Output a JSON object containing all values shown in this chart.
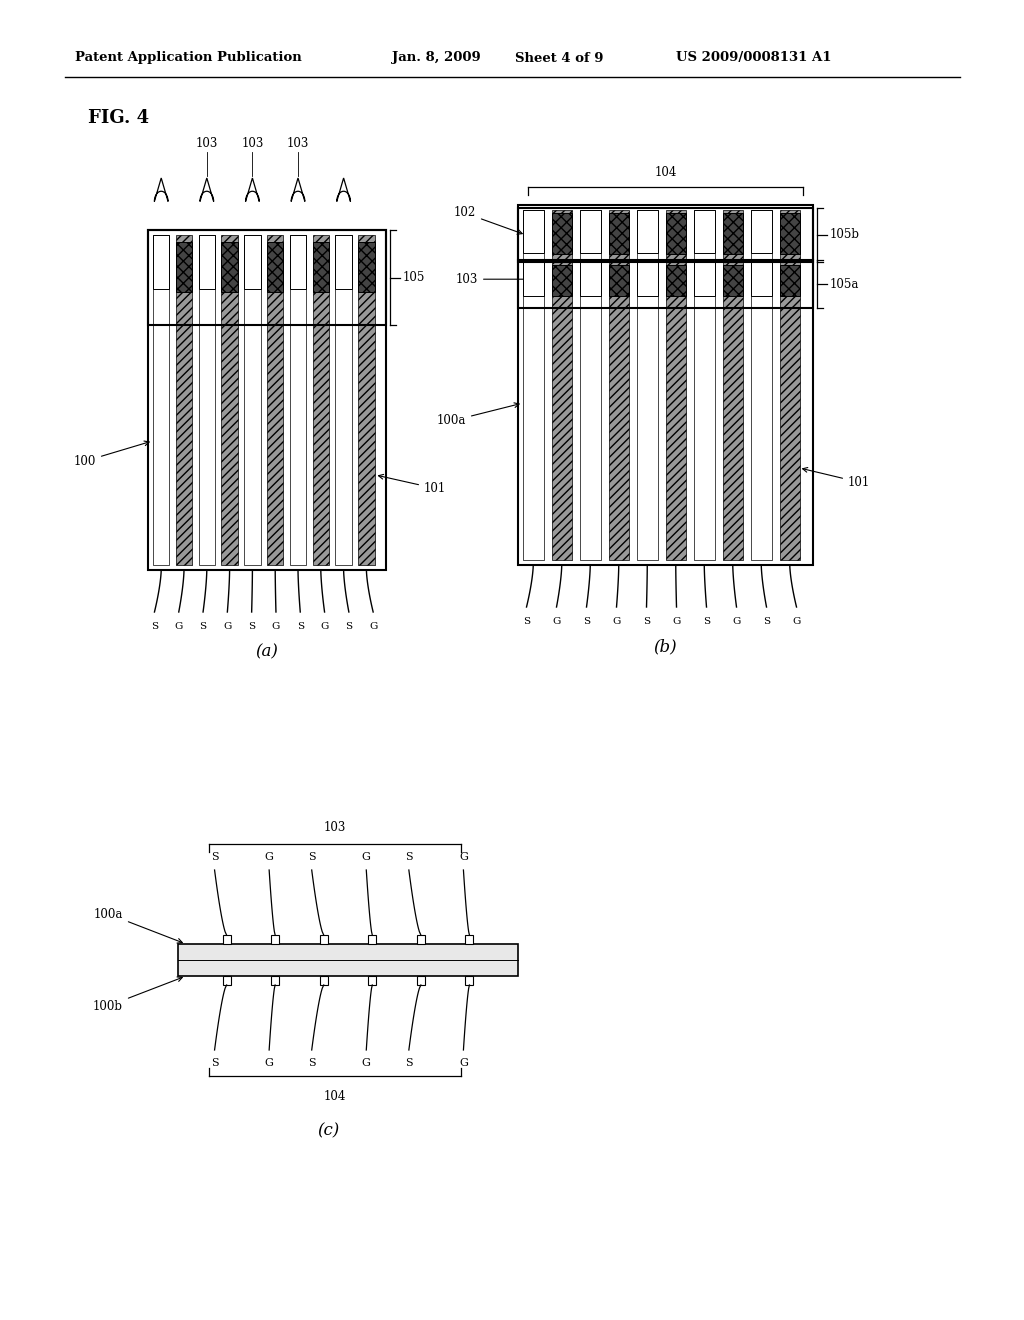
{
  "bg": "#ffffff",
  "fg": "#000000",
  "header_left": "Patent Application Publication",
  "header_date": "Jan. 8, 2009",
  "header_sheet": "Sheet 4 of 9",
  "header_patent": "US 2009/0008131 A1",
  "fig_label": "FIG. 4",
  "sub_a": "(a)",
  "sub_b": "(b)",
  "sub_c": "(c)",
  "sg_pattern": [
    "S",
    "G",
    "S",
    "G",
    "S",
    "G",
    "S",
    "G",
    "S",
    "G"
  ],
  "n_conductors": 10,
  "gray_hatch_color": "#aaaaaa",
  "dark_hatch_color": "#555555"
}
